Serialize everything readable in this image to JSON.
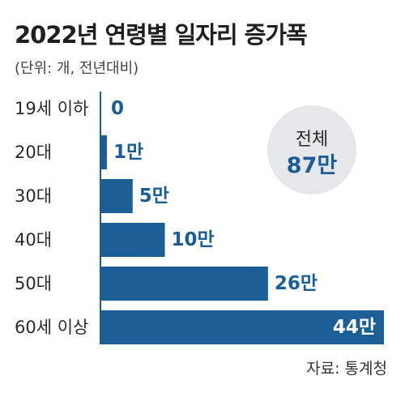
{
  "header": {
    "title": "2022년 연령별 일자리 증가폭",
    "subtitle": "(단위: 개, 전년대비)"
  },
  "total": {
    "label": "전체",
    "value": "87만"
  },
  "footer": {
    "source": "자료: 통계청"
  },
  "colors": {
    "bar": "#1b5e95",
    "label_inside": "#ffffff",
    "label_outside": "#1b5e95",
    "badge": "#e6e7e9"
  },
  "chart_data": {
    "type": "bar",
    "orientation": "horizontal",
    "unit": "만",
    "categories": [
      "19세 이하",
      "20대",
      "30대",
      "40대",
      "50대",
      "60세 이상"
    ],
    "values": [
      0,
      1,
      5,
      10,
      26,
      44
    ],
    "value_labels": [
      "0",
      "1만",
      "5만",
      "10만",
      "26만",
      "44만"
    ],
    "xlim": [
      0,
      44
    ],
    "grid": false
  }
}
